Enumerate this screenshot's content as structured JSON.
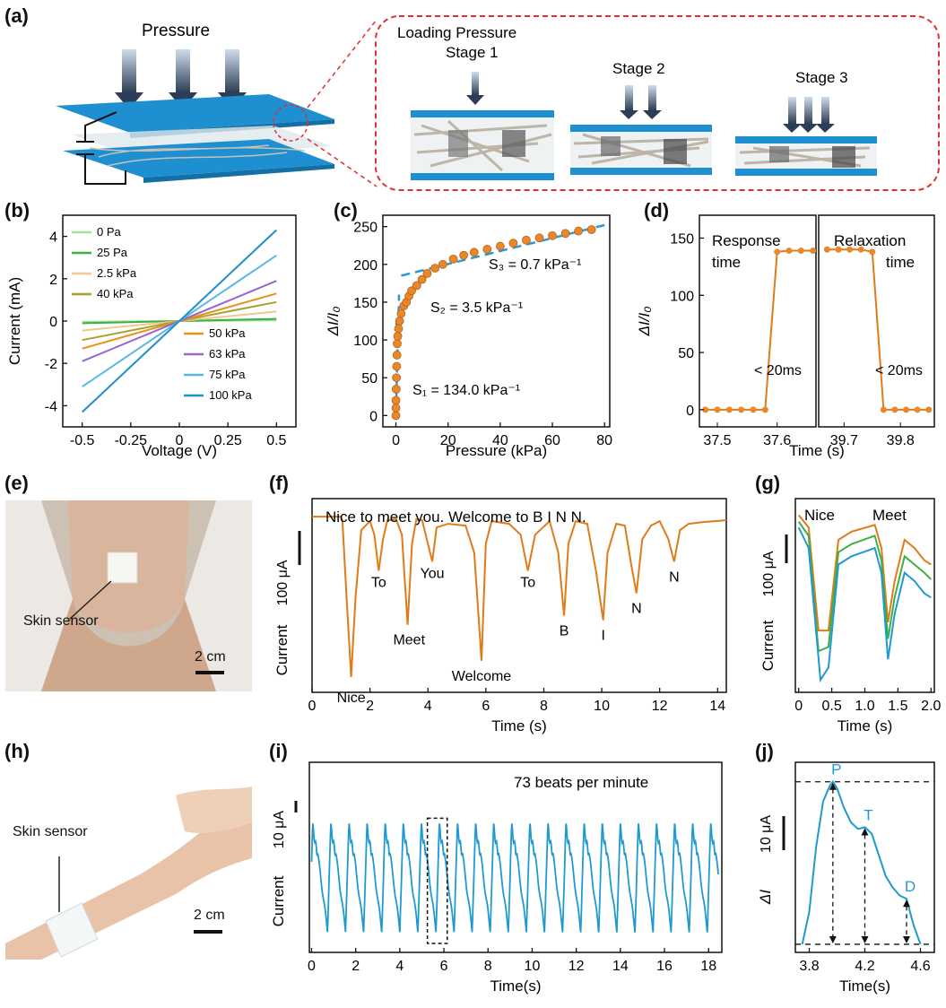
{
  "panels": {
    "a": "(a)",
    "b": "(b)",
    "c": "(c)",
    "d": "(d)",
    "e": "(e)",
    "f": "(f)",
    "g": "(g)",
    "h": "(h)",
    "i": "(i)",
    "j": "(j)"
  },
  "schematic": {
    "pressure": "Pressure",
    "loading": "Loading Pressure",
    "stage1": "Stage 1",
    "stage2": "Stage 2",
    "stage3": "Stage 3"
  },
  "photo_e": {
    "label": "Skin sensor",
    "scale": "2 cm"
  },
  "photo_h": {
    "label": "Skin sensor",
    "scale": "2 cm"
  },
  "colors": {
    "orange": "#e07b1a",
    "blue": "#1f9ad1",
    "green": "#3cb043",
    "red_dash": "#e03030"
  },
  "chart_data": [
    {
      "id": "b",
      "type": "line",
      "xlabel": "Voltage (V)",
      "ylabel": "Current (mA)",
      "xlim": [
        -0.6,
        0.6
      ],
      "ylim": [
        -5,
        5
      ],
      "xticks": [
        -0.5,
        -0.25,
        0,
        0.25,
        0.5
      ],
      "xticklabels": [
        "-0.5",
        "-0.25",
        "0",
        "0.25",
        "0.5"
      ],
      "yticks": [
        -4,
        -2,
        0,
        2,
        4
      ],
      "yticklabels": [
        "-4",
        "-2",
        "0",
        "2",
        "4"
      ],
      "legend": "inside",
      "series": [
        {
          "name": "0 Pa",
          "color": "#9be39b",
          "y_at_0_5": 0.03
        },
        {
          "name": "25 Pa",
          "color": "#3cb043",
          "y_at_0_5": 0.1
        },
        {
          "name": "2.5 kPa",
          "color": "#f0c890",
          "y_at_0_5": 0.45
        },
        {
          "name": "40 kPa",
          "color": "#a8a030",
          "y_at_0_5": 0.9
        },
        {
          "name": "50 kPa",
          "color": "#e8921a",
          "y_at_0_5": 1.3
        },
        {
          "name": "63 kPa",
          "color": "#9966cc",
          "y_at_0_5": 1.9
        },
        {
          "name": "75 kPa",
          "color": "#5ab8e6",
          "y_at_0_5": 3.1
        },
        {
          "name": "100 kPa",
          "color": "#1f8fc8",
          "y_at_0_5": 4.3
        }
      ]
    },
    {
      "id": "c",
      "type": "scatter",
      "xlabel": "Pressure (kPa)",
      "ylabel": "ΔI/I₀",
      "xlim": [
        -5,
        82
      ],
      "ylim": [
        -15,
        265
      ],
      "xticks": [
        0,
        20,
        40,
        60,
        80
      ],
      "xticklabels": [
        "0",
        "20",
        "40",
        "60",
        "80"
      ],
      "yticks": [
        0,
        50,
        100,
        150,
        200,
        250
      ],
      "yticklabels": [
        "0",
        "50",
        "100",
        "150",
        "200",
        "250"
      ],
      "annotations": [
        "S₃ = 0.7 kPa⁻¹",
        "S₂ = 3.5 kPa⁻¹",
        "S₁ = 134.0 kPa⁻¹"
      ],
      "points": [
        [
          0,
          0
        ],
        [
          0,
          10
        ],
        [
          0,
          20
        ],
        [
          0.1,
          35
        ],
        [
          0.2,
          50
        ],
        [
          0.3,
          65
        ],
        [
          0.4,
          80
        ],
        [
          0.5,
          95
        ],
        [
          0.7,
          105
        ],
        [
          1,
          115
        ],
        [
          1.4,
          125
        ],
        [
          2,
          135
        ],
        [
          3,
          145
        ],
        [
          4,
          150
        ],
        [
          5,
          158
        ],
        [
          6,
          165
        ],
        [
          8,
          172
        ],
        [
          10,
          180
        ],
        [
          12,
          188
        ],
        [
          15,
          195
        ],
        [
          18,
          200
        ],
        [
          22,
          207
        ],
        [
          26,
          212
        ],
        [
          30,
          216
        ],
        [
          35,
          220
        ],
        [
          40,
          224
        ],
        [
          45,
          228
        ],
        [
          50,
          232
        ],
        [
          55,
          235
        ],
        [
          60,
          238
        ],
        [
          65,
          241
        ],
        [
          70,
          244
        ],
        [
          75,
          246
        ]
      ],
      "fits": [
        {
          "points": [
            [
              0,
              0
            ],
            [
              1.2,
              160
            ]
          ]
        },
        {
          "points": [
            [
              0,
              120
            ],
            [
              6,
              170
            ]
          ]
        },
        {
          "points": [
            [
              2,
              185
            ],
            [
              80,
              252
            ]
          ]
        }
      ]
    },
    {
      "id": "d",
      "type": "line",
      "xlabel": "Time (s)",
      "ylabel": "ΔI/I₀",
      "yticks": [
        0,
        50,
        100,
        150
      ],
      "yticklabels": [
        "0",
        "50",
        "100",
        "150"
      ],
      "ylim": [
        -15,
        170
      ],
      "left": {
        "xlim": [
          37.47,
          37.665
        ],
        "xticks": [
          37.5,
          37.6
        ],
        "xticklabels": [
          "37.5",
          "37.6"
        ],
        "points": [
          [
            37.48,
            0
          ],
          [
            37.5,
            0
          ],
          [
            37.52,
            0
          ],
          [
            37.54,
            0
          ],
          [
            37.56,
            0
          ],
          [
            37.58,
            0
          ],
          [
            37.6,
            138
          ],
          [
            37.62,
            139
          ],
          [
            37.64,
            139
          ],
          [
            37.66,
            139
          ]
        ],
        "label": "Response time",
        "note": "< 20ms"
      },
      "right": {
        "xlim": [
          37.665,
          39.86
        ],
        "xticks": [
          39.7,
          39.8
        ],
        "xticklabels": [
          "39.7",
          "39.8"
        ],
        "points": [
          [
            39.67,
            140
          ],
          [
            39.69,
            140
          ],
          [
            39.71,
            140
          ],
          [
            39.73,
            140
          ],
          [
            39.75,
            138
          ],
          [
            39.77,
            0
          ],
          [
            39.79,
            0
          ],
          [
            39.81,
            0
          ],
          [
            39.83,
            0
          ],
          [
            39.85,
            0
          ]
        ],
        "label": "Relaxation time",
        "note": "< 20ms"
      }
    },
    {
      "id": "f",
      "type": "line",
      "xlabel": "Time (s)",
      "ylabel": "Current",
      "scalebar": "100 μA",
      "title_text": "Nice to meet you. Welcome to  B   I    N    N.",
      "xlim": [
        0,
        14.3
      ],
      "xticks": [
        0,
        2,
        4,
        6,
        8,
        10,
        12,
        14
      ],
      "xticklabels": [
        "0",
        "2",
        "4",
        "6",
        "8",
        "10",
        "12",
        "14"
      ],
      "word_labels": [
        {
          "text": "Nice",
          "x": 1.35
        },
        {
          "text": "To",
          "x": 2.3
        },
        {
          "text": "Meet",
          "x": 3.35
        },
        {
          "text": "You",
          "x": 4.15
        },
        {
          "text": "Welcome",
          "x": 5.85
        },
        {
          "text": "To",
          "x": 7.45
        },
        {
          "text": "B",
          "x": 8.7
        },
        {
          "text": "I",
          "x": 10.05
        },
        {
          "text": "N",
          "x": 11.2
        },
        {
          "text": "N",
          "x": 12.5
        }
      ],
      "points": [
        [
          0,
          0
        ],
        [
          1,
          0
        ],
        [
          1.05,
          -5
        ],
        [
          1.2,
          -95
        ],
        [
          1.35,
          -178
        ],
        [
          1.5,
          -90
        ],
        [
          1.7,
          -15
        ],
        [
          2,
          -5
        ],
        [
          2.15,
          -20
        ],
        [
          2.3,
          -60
        ],
        [
          2.45,
          -25
        ],
        [
          2.6,
          -4
        ],
        [
          2.9,
          -3
        ],
        [
          3.1,
          -20
        ],
        [
          3.3,
          -120
        ],
        [
          3.45,
          -30
        ],
        [
          3.6,
          -3
        ],
        [
          3.8,
          -4
        ],
        [
          4,
          -30
        ],
        [
          4.15,
          -50
        ],
        [
          4.3,
          -12
        ],
        [
          4.7,
          -8
        ],
        [
          5.3,
          -10
        ],
        [
          5.6,
          -40
        ],
        [
          5.85,
          -160
        ],
        [
          6,
          -30
        ],
        [
          6.2,
          -5
        ],
        [
          6.8,
          -8
        ],
        [
          7.2,
          -20
        ],
        [
          7.45,
          -60
        ],
        [
          7.7,
          -20
        ],
        [
          8.2,
          -5
        ],
        [
          8.5,
          -40
        ],
        [
          8.7,
          -110
        ],
        [
          8.85,
          -30
        ],
        [
          9.1,
          -5
        ],
        [
          9.5,
          -8
        ],
        [
          9.8,
          -60
        ],
        [
          10.05,
          -115
        ],
        [
          10.2,
          -40
        ],
        [
          10.5,
          -8
        ],
        [
          10.8,
          -10
        ],
        [
          11,
          -50
        ],
        [
          11.2,
          -85
        ],
        [
          11.4,
          -25
        ],
        [
          11.7,
          -10
        ],
        [
          12,
          -5
        ],
        [
          12.3,
          -25
        ],
        [
          12.5,
          -50
        ],
        [
          12.7,
          -15
        ],
        [
          13,
          -8
        ],
        [
          13.5,
          -6
        ],
        [
          14.3,
          -4
        ]
      ]
    },
    {
      "id": "g",
      "type": "line",
      "xlabel": "Time (s)",
      "ylabel": "Current",
      "scalebar": "100 μA",
      "labels": [
        "Nice",
        "Meet"
      ],
      "xlim": [
        -0.05,
        2.05
      ],
      "xticks": [
        0,
        0.5,
        1.0,
        1.5,
        2.0
      ],
      "xticklabels": [
        "0",
        "0.5",
        "1.0",
        "1.5",
        "2.0"
      ],
      "series": [
        {
          "color": "#e07b1a",
          "points": [
            [
              0,
              0
            ],
            [
              0.15,
              -15
            ],
            [
              0.3,
              -140
            ],
            [
              0.45,
              -140
            ],
            [
              0.6,
              -30
            ],
            [
              0.8,
              -20
            ],
            [
              1.15,
              -12
            ],
            [
              1.25,
              -40
            ],
            [
              1.35,
              -130
            ],
            [
              1.45,
              -80
            ],
            [
              1.6,
              -30
            ],
            [
              1.75,
              -40
            ],
            [
              1.9,
              -55
            ],
            [
              2.0,
              -60
            ]
          ]
        },
        {
          "color": "#3cb043",
          "points": [
            [
              0,
              -8
            ],
            [
              0.15,
              -25
            ],
            [
              0.3,
              -165
            ],
            [
              0.45,
              -160
            ],
            [
              0.6,
              -45
            ],
            [
              0.8,
              -35
            ],
            [
              1.15,
              -25
            ],
            [
              1.25,
              -55
            ],
            [
              1.35,
              -150
            ],
            [
              1.45,
              -100
            ],
            [
              1.6,
              -50
            ],
            [
              1.75,
              -60
            ],
            [
              1.9,
              -70
            ],
            [
              2.0,
              -78
            ]
          ]
        },
        {
          "color": "#1f9ad1",
          "points": [
            [
              0,
              -15
            ],
            [
              0.15,
              -40
            ],
            [
              0.33,
              -200
            ],
            [
              0.45,
              -185
            ],
            [
              0.6,
              -60
            ],
            [
              0.8,
              -50
            ],
            [
              1.15,
              -40
            ],
            [
              1.25,
              -70
            ],
            [
              1.35,
              -175
            ],
            [
              1.45,
              -120
            ],
            [
              1.6,
              -70
            ],
            [
              1.75,
              -80
            ],
            [
              1.9,
              -95
            ],
            [
              2.0,
              -100
            ]
          ]
        }
      ]
    },
    {
      "id": "i",
      "type": "line",
      "xlabel": "Time(s)",
      "ylabel": "Current",
      "scalebar": "10 μA",
      "annotation": "73 beats per minute",
      "xlim": [
        -0.1,
        18.6
      ],
      "xticks": [
        0,
        2,
        4,
        6,
        8,
        10,
        12,
        14,
        16,
        18
      ],
      "xticklabels": [
        "0",
        "2",
        "4",
        "6",
        "8",
        "10",
        "12",
        "14",
        "16",
        "18"
      ],
      "beat_period": 0.82,
      "amplitude": 45
    },
    {
      "id": "j",
      "type": "line",
      "xlabel": "Time(s)",
      "ylabel": "ΔI",
      "scalebar": "10 μA",
      "xlim": [
        3.7,
        4.7
      ],
      "xticks": [
        3.8,
        4.2,
        4.6
      ],
      "xticklabels": [
        "3.8",
        "4.2",
        "4.6"
      ],
      "peaks": [
        {
          "text": "P",
          "x": 3.97,
          "y": 100
        },
        {
          "text": "T",
          "x": 4.2,
          "y": 72
        },
        {
          "text": "D",
          "x": 4.5,
          "y": 28
        }
      ],
      "points": [
        [
          3.75,
          0
        ],
        [
          3.8,
          20
        ],
        [
          3.85,
          60
        ],
        [
          3.9,
          88
        ],
        [
          3.95,
          98
        ],
        [
          3.97,
          100
        ],
        [
          4.0,
          96
        ],
        [
          4.05,
          84
        ],
        [
          4.1,
          75
        ],
        [
          4.15,
          71
        ],
        [
          4.2,
          72
        ],
        [
          4.25,
          68
        ],
        [
          4.3,
          55
        ],
        [
          4.35,
          42
        ],
        [
          4.4,
          35
        ],
        [
          4.45,
          30
        ],
        [
          4.5,
          28
        ],
        [
          4.55,
          12
        ],
        [
          4.6,
          0
        ]
      ]
    }
  ]
}
